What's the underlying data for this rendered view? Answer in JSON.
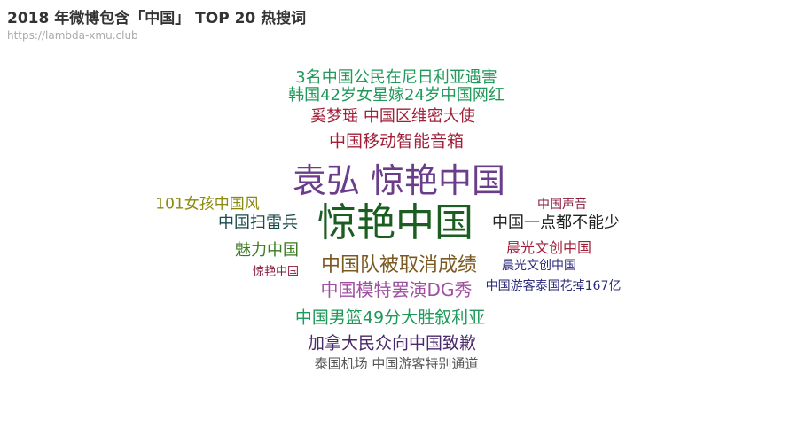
{
  "title": "2018 年微博包含「中国」 TOP 20 热搜词",
  "subtitle": "https://lambda-xmu.club",
  "chart_data": {
    "type": "wordcloud",
    "title": "2018 年微博包含「中国」 TOP 20 热搜词",
    "subtitle": "https://lambda-xmu.club",
    "words": [
      {
        "text": "3名中国公民在尼日利亚遇害",
        "color": "#1f9a5a"
      },
      {
        "text": "韩国42岁女星嫁24岁中国网红",
        "color": "#1f9a5a"
      },
      {
        "text": "奚梦瑶 中国区维密大使",
        "color": "#a0203a"
      },
      {
        "text": "中国移动智能音箱",
        "color": "#a0203a"
      },
      {
        "text": "袁弘 惊艳中国",
        "color": "#6a3d8a"
      },
      {
        "text": "101女孩中国风",
        "color": "#8a8a10"
      },
      {
        "text": "中国声音",
        "color": "#8a1a3a"
      },
      {
        "text": "惊艳中国",
        "color": "#1c5e22"
      },
      {
        "text": "中国扫雷兵",
        "color": "#1a4a4a"
      },
      {
        "text": "中国一点都不能少",
        "color": "#222222"
      },
      {
        "text": "晨光文创中国",
        "color": "#a0203a"
      },
      {
        "text": "魅力中国",
        "color": "#3a7a20"
      },
      {
        "text": "中国队被取消成绩",
        "color": "#7a5a20"
      },
      {
        "text": "惊艳中国",
        "color": "#8a1a3a"
      },
      {
        "text": "晨光文创中国",
        "color": "#2a2a7a"
      },
      {
        "text": "中国模特罢演DG秀",
        "color": "#a050a0"
      },
      {
        "text": "中国游客泰国花掉167亿",
        "color": "#2a2a7a"
      },
      {
        "text": "中国男篮49分大胜叙利亚",
        "color": "#1f9a5a"
      },
      {
        "text": "加拿大民众向中国致歉",
        "color": "#4a2a6a"
      },
      {
        "text": "泰国机场 中国游客特别通道",
        "color": "#555555"
      }
    ]
  }
}
